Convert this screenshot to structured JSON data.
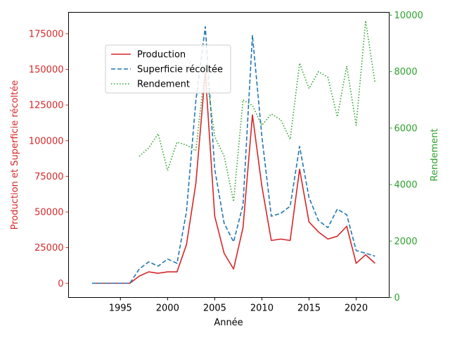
{
  "chart_data": {
    "type": "line",
    "xlabel": "Année",
    "ylabel_left": "Production et Superficie récoltée",
    "ylabel_right": "Rendement",
    "xlim": [
      1989.5,
      2023.5
    ],
    "ylim_left": [
      -10000,
      190000
    ],
    "ylim_right": [
      0,
      10100
    ],
    "x_ticks": [
      1995,
      2000,
      2005,
      2010,
      2015,
      2020
    ],
    "y_ticks_left": [
      0,
      25000,
      50000,
      75000,
      100000,
      125000,
      150000,
      175000
    ],
    "y_ticks_right": [
      0,
      2000,
      4000,
      6000,
      8000,
      10000
    ],
    "grid": false,
    "legend_position": "upper-center",
    "colors": {
      "left_axis": "#d62728",
      "right_axis": "#2ca02c"
    },
    "series": [
      {
        "name": "Production",
        "axis": "left",
        "style": "solid",
        "color": "#d62728",
        "x": [
          1992,
          1993,
          1994,
          1995,
          1996,
          1997,
          1998,
          1999,
          2000,
          2001,
          2002,
          2003,
          2004,
          2005,
          2006,
          2007,
          2008,
          2009,
          2010,
          2011,
          2012,
          2013,
          2014,
          2015,
          2016,
          2017,
          2018,
          2019,
          2020,
          2021,
          2022
        ],
        "values": [
          0,
          0,
          0,
          0,
          0,
          5000,
          8000,
          7000,
          8000,
          8000,
          27000,
          70000,
          148000,
          47000,
          21000,
          10000,
          39000,
          118000,
          68000,
          30000,
          31000,
          30000,
          80000,
          43000,
          36000,
          31000,
          33000,
          40000,
          14000,
          20000,
          14000
        ]
      },
      {
        "name": "Superficie récoltée",
        "axis": "left",
        "style": "dashed",
        "color": "#1f77b4",
        "x": [
          1992,
          1993,
          1994,
          1995,
          1996,
          1997,
          1998,
          1999,
          2000,
          2001,
          2002,
          2003,
          2004,
          2005,
          2006,
          2007,
          2008,
          2009,
          2010,
          2011,
          2012,
          2013,
          2014,
          2015,
          2016,
          2017,
          2018,
          2019,
          2020,
          2021,
          2022
        ],
        "values": [
          0,
          0,
          0,
          0,
          0,
          10000,
          15000,
          12000,
          17000,
          14000,
          50000,
          128000,
          180000,
          80000,
          42000,
          29000,
          55000,
          174000,
          103000,
          47000,
          49000,
          54000,
          96000,
          60000,
          44000,
          39000,
          52000,
          48000,
          23000,
          21000,
          19000
        ]
      },
      {
        "name": "Rendement",
        "axis": "right",
        "style": "dotted",
        "color": "#2ca02c",
        "x": [
          1997,
          1998,
          1999,
          2000,
          2001,
          2002,
          2003,
          2004,
          2005,
          2006,
          2007,
          2008,
          2009,
          2010,
          2011,
          2012,
          2013,
          2014,
          2015,
          2016,
          2017,
          2018,
          2019,
          2020,
          2021,
          2022
        ],
        "values": [
          5000,
          5300,
          5800,
          4500,
          5500,
          5400,
          5200,
          8200,
          5700,
          5000,
          3400,
          7000,
          6800,
          6100,
          6500,
          6300,
          5600,
          8300,
          7400,
          8000,
          7800,
          6400,
          8200,
          6100,
          9800,
          7600
        ]
      }
    ]
  }
}
